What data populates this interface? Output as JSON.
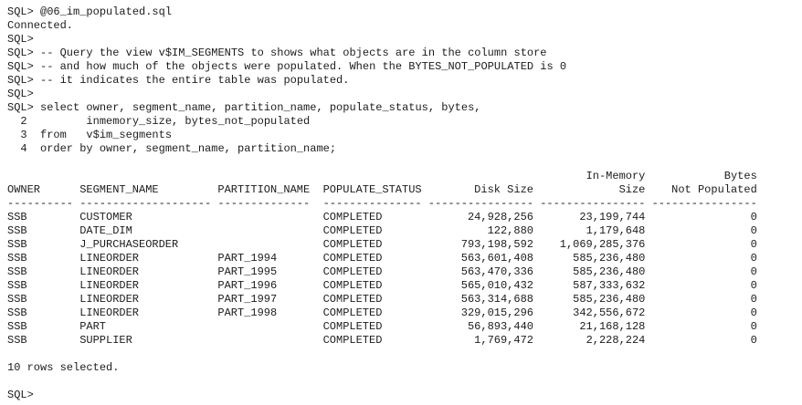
{
  "preamble": [
    "SQL> @06_im_populated.sql",
    "Connected.",
    "SQL>",
    "SQL> -- Query the view v$IM_SEGMENTS to shows what objects are in the column store",
    "SQL> -- and how much of the objects were populated. When the BYTES_NOT_POPULATED is 0",
    "SQL> -- it indicates the entire table was populated.",
    "SQL>",
    "SQL> select owner, segment_name, partition_name, populate_status, bytes,",
    "  2         inmemory_size, bytes_not_populated",
    "  3  from   v$im_segments",
    "  4  order by owner, segment_name, partition_name;"
  ],
  "table": {
    "columns": [
      {
        "header": [
          "OWNER"
        ],
        "separator": "----------"
      },
      {
        "header": [
          "SEGMENT_NAME"
        ],
        "separator": "--------------------"
      },
      {
        "header": [
          "PARTITION_NAME"
        ],
        "separator": "--------------"
      },
      {
        "header": [
          "POPULATE_STATUS"
        ],
        "separator": "---------------"
      },
      {
        "header": [
          "Disk Size"
        ],
        "separator": "----------------"
      },
      {
        "header": [
          "In-Memory",
          "Size"
        ],
        "separator": "----------------"
      },
      {
        "header": [
          "Bytes",
          "Not Populated"
        ],
        "separator": "----------------"
      }
    ],
    "rows": [
      [
        "SSB",
        "CUSTOMER",
        null,
        "COMPLETED",
        "24,928,256",
        "23,199,744",
        "0"
      ],
      [
        "SSB",
        "DATE_DIM",
        null,
        "COMPLETED",
        "122,880",
        "1,179,648",
        "0"
      ],
      [
        "SSB",
        "J_PURCHASEORDER",
        null,
        "COMPLETED",
        "793,198,592",
        "1,069,285,376",
        "0"
      ],
      [
        "SSB",
        "LINEORDER",
        "PART_1994",
        "COMPLETED",
        "563,601,408",
        "585,236,480",
        "0"
      ],
      [
        "SSB",
        "LINEORDER",
        "PART_1995",
        "COMPLETED",
        "563,470,336",
        "585,236,480",
        "0"
      ],
      [
        "SSB",
        "LINEORDER",
        "PART_1996",
        "COMPLETED",
        "565,010,432",
        "587,333,632",
        "0"
      ],
      [
        "SSB",
        "LINEORDER",
        "PART_1997",
        "COMPLETED",
        "563,314,688",
        "585,236,480",
        "0"
      ],
      [
        "SSB",
        "LINEORDER",
        "PART_1998",
        "COMPLETED",
        "329,015,296",
        "342,556,672",
        "0"
      ],
      [
        "SSB",
        "PART",
        null,
        "COMPLETED",
        "56,893,440",
        "21,168,128",
        "0"
      ],
      [
        "SSB",
        "SUPPLIER",
        null,
        "COMPLETED",
        "1,769,472",
        "2,228,224",
        "0"
      ]
    ]
  },
  "footer": "10 rows selected.",
  "prompt": "SQL>"
}
